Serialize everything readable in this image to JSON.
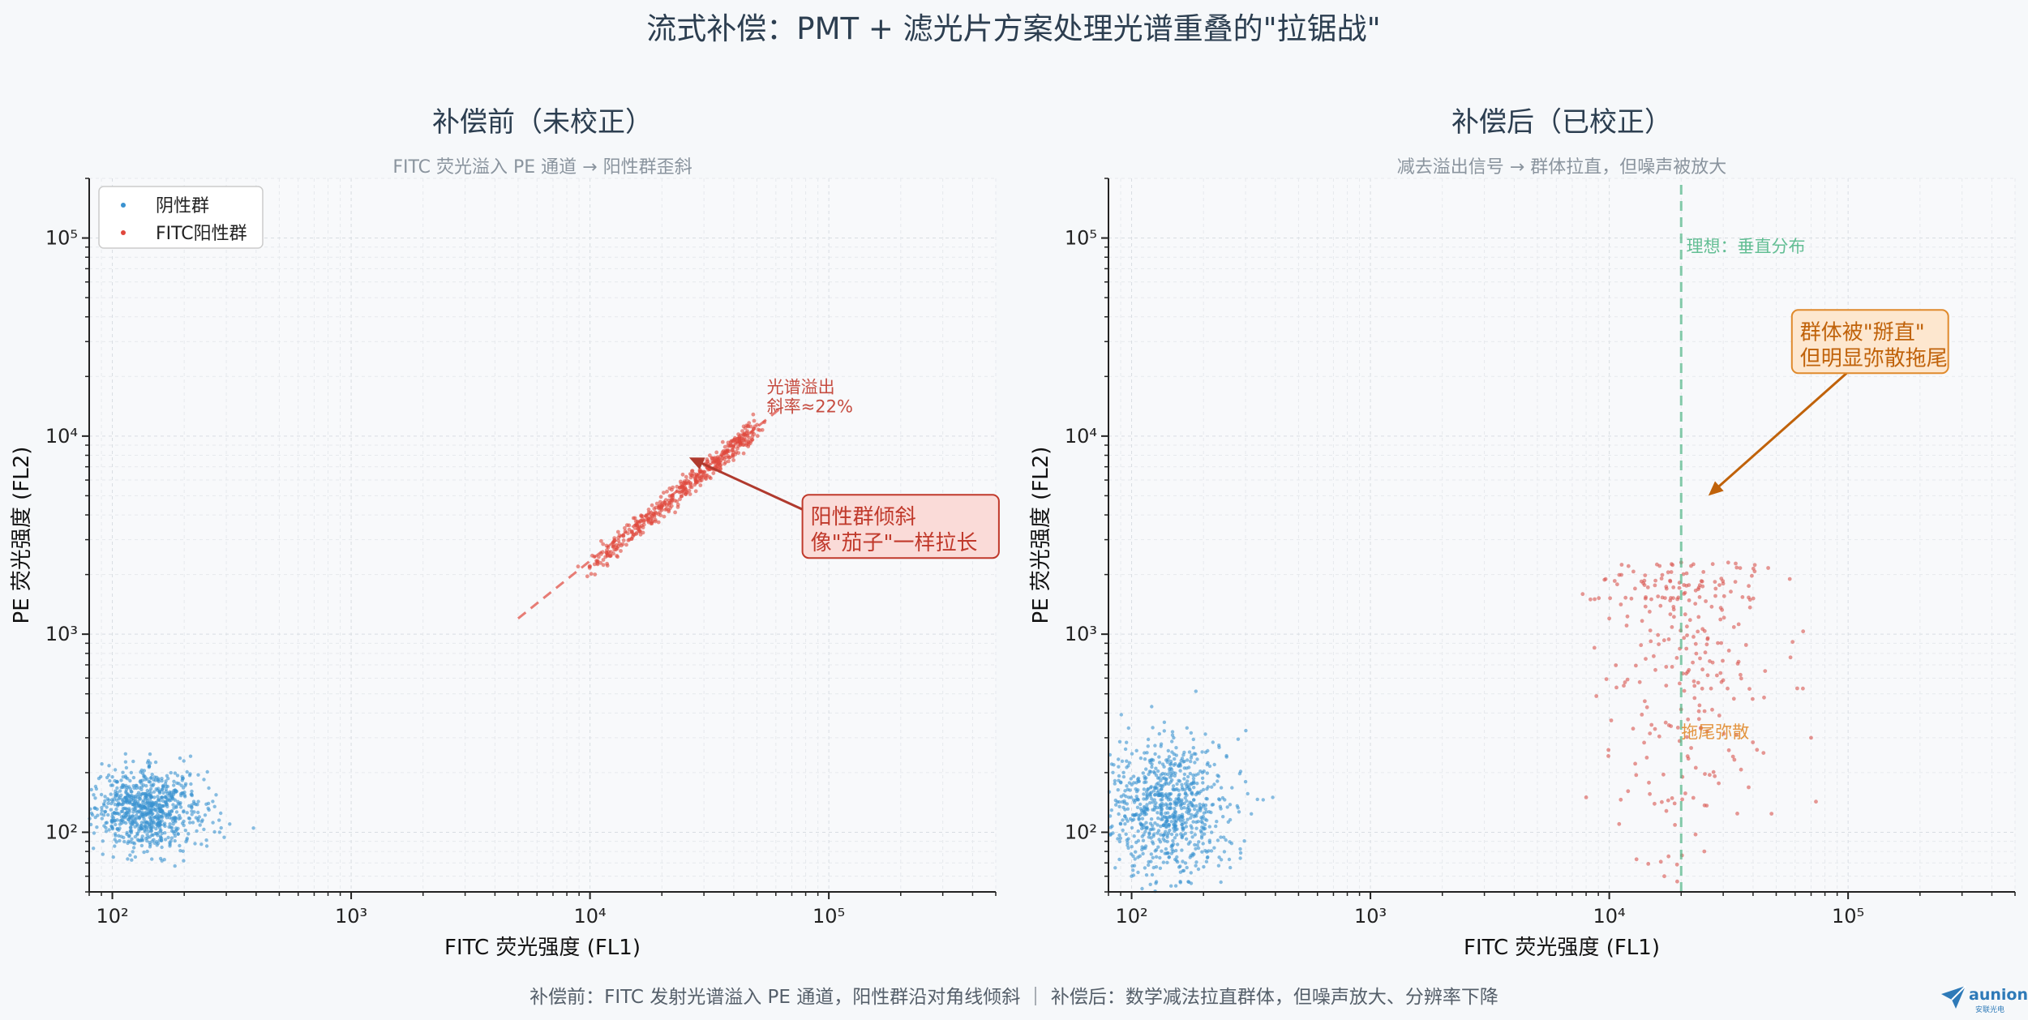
{
  "figure": {
    "title": "流式补偿：PMT + 滤光片方案处理光谱重叠的\"拉锯战\"",
    "footer": "补偿前：FITC 发射光谱溢入 PE 通道，阳性群沿对角线倾斜 ｜ 补偿后：数学减法拉直群体，但噪声放大、分辨率下降",
    "logo": {
      "brand": "aunion",
      "tagline": "安联光电"
    }
  },
  "chart_data": [
    {
      "type": "scatter",
      "title": "补偿前（未校正）",
      "subtitle": "FITC 荧光溢入 PE 通道 → 阳性群歪斜",
      "xlabel": "FITC 荧光强度 (FL1)",
      "ylabel": "PE 荧光强度 (FL2)",
      "xscale": "log",
      "yscale": "log",
      "xlim": [
        80,
        500000
      ],
      "ylim": [
        50,
        200000
      ],
      "xticks": [
        {
          "value": 100,
          "label": "10²"
        },
        {
          "value": 1000,
          "label": "10³"
        },
        {
          "value": 10000,
          "label": "10⁴"
        },
        {
          "value": 100000,
          "label": "10⁵"
        }
      ],
      "yticks": [
        {
          "value": 100,
          "label": "10²"
        },
        {
          "value": 1000,
          "label": "10³"
        },
        {
          "value": 10000,
          "label": "10⁴"
        },
        {
          "value": 100000,
          "label": "10⁵"
        }
      ],
      "grid": true,
      "legend": {
        "placement": "top-left",
        "entries": [
          "阴性群",
          "FITC阳性群"
        ]
      },
      "series": [
        {
          "name": "阴性群",
          "color": "#3a92d0",
          "distribution": {
            "kind": "lognormal-cloud",
            "count": 800,
            "center": [
              140,
              130
            ],
            "spread_dex": [
              0.12,
              0.1
            ]
          },
          "points": [
            [
              100,
              120
            ],
            [
              120,
              200
            ],
            [
              150,
              150
            ],
            [
              180,
              110
            ],
            [
              220,
              140
            ],
            [
              280,
              115
            ],
            [
              310,
              110
            ],
            [
              390,
              105
            ],
            [
              90,
              155
            ],
            [
              140,
              80
            ]
          ]
        },
        {
          "name": "FITC阳性群",
          "color": "#e0473c",
          "distribution": {
            "kind": "diagonal-band",
            "count": 450,
            "x_range": [
              10000,
              50000
            ],
            "slope_ratio": 0.22,
            "spread_dex": 0.03
          },
          "points": [
            [
              10000,
              2200
            ],
            [
              12000,
              2600
            ],
            [
              15000,
              3300
            ],
            [
              20000,
              4400
            ],
            [
              25000,
              5500
            ],
            [
              30000,
              6600
            ],
            [
              40000,
              8800
            ],
            [
              48000,
              10500
            ]
          ]
        }
      ],
      "lines": [
        {
          "name": "spillover-line",
          "color": "#e0473c",
          "style": "dashed",
          "points": [
            [
              5000,
              1200
            ],
            [
              65000,
              14300
            ]
          ]
        }
      ],
      "annotations": [
        {
          "text": "光谱溢出\n斜率≈22%",
          "color": "#c0392b",
          "kind": "label",
          "at": [
            55000,
            16500
          ]
        },
        {
          "text": "阳性群倾斜\n像\"茄子\"一样拉长",
          "color": "#c0392b",
          "kind": "callout",
          "box_fill": "#fadbd8",
          "box_stroke": "#c0392b",
          "at": [
            80000,
            3500
          ],
          "arrow_to": [
            26000,
            7800
          ]
        }
      ]
    },
    {
      "type": "scatter",
      "title": "补偿后（已校正）",
      "subtitle": "减去溢出信号 → 群体拉直，但噪声被放大",
      "xlabel": "FITC 荧光强度 (FL1)",
      "ylabel": "PE 荧光强度 (FL2)",
      "xscale": "log",
      "yscale": "log",
      "xlim": [
        80,
        500000
      ],
      "ylim": [
        50,
        200000
      ],
      "xticks": [
        {
          "value": 100,
          "label": "10²"
        },
        {
          "value": 1000,
          "label": "10³"
        },
        {
          "value": 10000,
          "label": "10⁴"
        },
        {
          "value": 100000,
          "label": "10⁵"
        }
      ],
      "yticks": [
        {
          "value": 100,
          "label": "10²"
        },
        {
          "value": 1000,
          "label": "10³"
        },
        {
          "value": 10000,
          "label": "10⁴"
        },
        {
          "value": 100000,
          "label": "10⁵"
        }
      ],
      "grid": true,
      "series": [
        {
          "name": "阴性群",
          "color": "#3a92d0",
          "distribution": {
            "kind": "lognormal-cloud",
            "count": 800,
            "center": [
              140,
              130
            ],
            "spread_dex": [
              0.13,
              0.17
            ]
          },
          "points": [
            [
              100,
              60
            ],
            [
              150,
              300
            ],
            [
              250,
              240
            ],
            [
              300,
              180
            ],
            [
              390,
              150
            ],
            [
              90,
              110
            ]
          ]
        },
        {
          "name": "FITC阳性群",
          "color": "#d9534f",
          "distribution": {
            "kind": "vertical-smear",
            "count": 280,
            "center": [
              22000,
              900
            ],
            "spread_dex": [
              0.18,
              0.45
            ]
          },
          "points": [
            [
              10000,
              1200
            ],
            [
              15000,
              1500
            ],
            [
              20000,
              2300
            ],
            [
              30000,
              1800
            ],
            [
              57000,
              1900
            ],
            [
              70000,
              300
            ],
            [
              8000,
              150
            ],
            [
              11000,
              110
            ],
            [
              17000,
              60
            ],
            [
              25000,
              80
            ]
          ]
        }
      ],
      "lines": [
        {
          "name": "ideal-vertical-line",
          "color": "#52b788",
          "style": "dashed",
          "points": [
            [
              20000,
              50
            ],
            [
              20000,
              200000
            ]
          ]
        }
      ],
      "annotations": [
        {
          "text": "理想：垂直分布",
          "color": "#52b788",
          "kind": "label",
          "at": [
            21000,
            85000
          ]
        },
        {
          "text": "群体被\"掰直\"\n但明显弥散拖尾",
          "color": "#c0620a",
          "kind": "callout",
          "box_fill": "#fde7cf",
          "box_stroke": "#e08a2c",
          "at": [
            60000,
            30000
          ],
          "arrow_to": [
            26000,
            5000
          ]
        },
        {
          "text": "拖尾弥散",
          "color": "#e08a2c",
          "kind": "label",
          "at": [
            20000,
            300
          ]
        }
      ]
    }
  ]
}
